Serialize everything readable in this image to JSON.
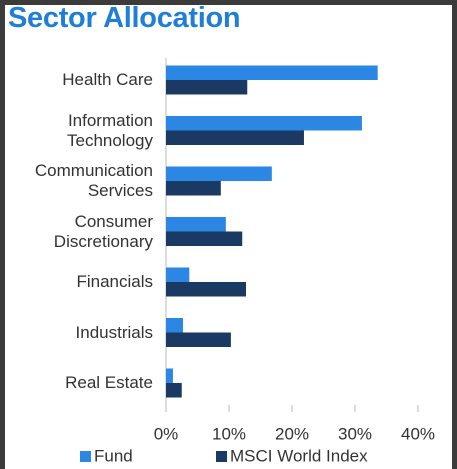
{
  "chart_data": {
    "type": "hbar",
    "title": "Sector Allocation",
    "categories": [
      "Health Care",
      "Information\nTechnology",
      "Communication\nServices",
      "Consumer\nDiscretionary",
      "Financials",
      "Industrials",
      "Real Estate"
    ],
    "series": [
      {
        "name": "Fund",
        "color": "#2b87e3",
        "values": [
          33.6,
          31.1,
          16.8,
          9.5,
          3.7,
          2.7,
          1.1
        ]
      },
      {
        "name": "MSCI World Index",
        "color": "#1b3a63",
        "values": [
          12.9,
          21.9,
          8.7,
          12.1,
          12.7,
          10.3,
          2.5
        ]
      }
    ],
    "xlim": [
      0,
      40
    ],
    "xticks": [
      {
        "value": 0,
        "label": "0%"
      },
      {
        "value": 10,
        "label": "10%"
      },
      {
        "value": 20,
        "label": "20%"
      },
      {
        "value": 30,
        "label": "30%"
      },
      {
        "value": 40,
        "label": "40%"
      }
    ],
    "legend": "bottom"
  }
}
